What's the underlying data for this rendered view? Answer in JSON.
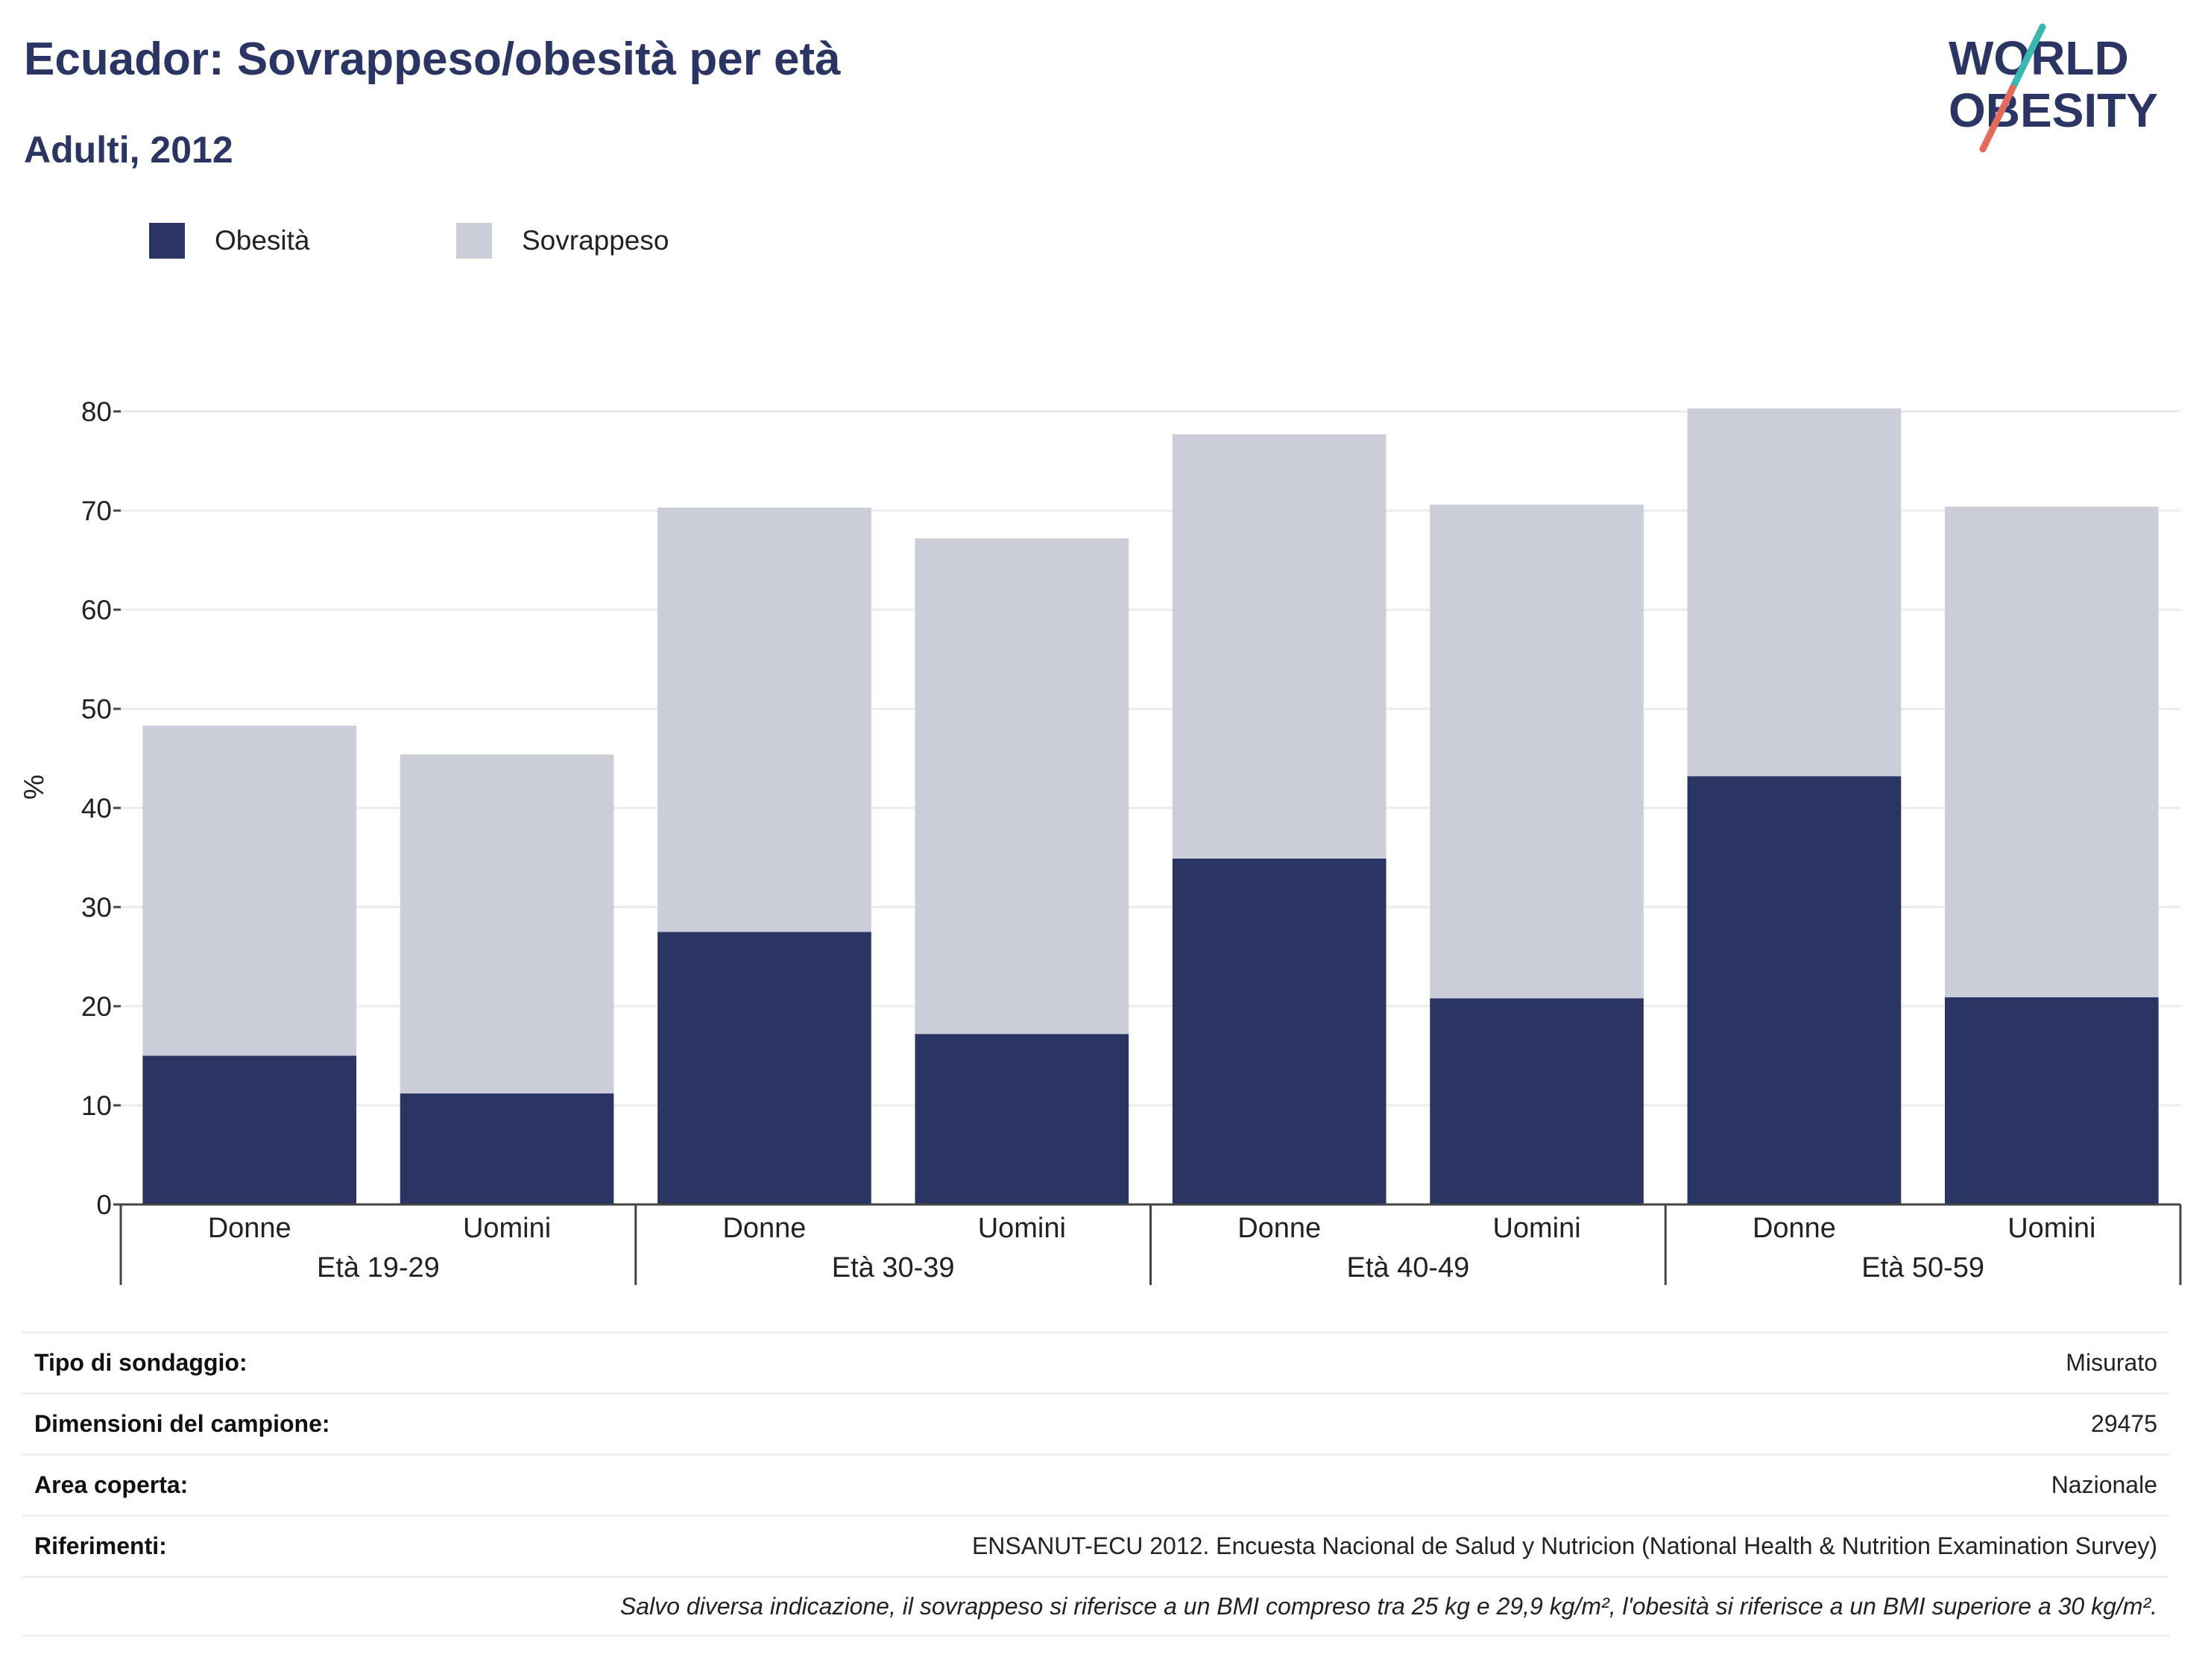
{
  "header": {
    "title": "Ecuador: Sovrappeso/obesità per età",
    "subtitle": "Adulti, 2012"
  },
  "logo": {
    "line1": "WORLD",
    "line2": "OBESITY"
  },
  "colors": {
    "obesity": "#2b3563",
    "overweight": "#cbcdd9",
    "title": "#2b3563",
    "accent_teal": "#3bb6b0",
    "accent_red": "#e36b5a"
  },
  "chart_data": {
    "type": "bar",
    "stacked": true,
    "ylabel": "%",
    "ylim": [
      0,
      80
    ],
    "yticks": [
      "0",
      "10",
      "20",
      "30",
      "40",
      "50",
      "60",
      "70",
      "80"
    ],
    "grid": true,
    "legend_position": "top-left",
    "categories": [
      "Donne",
      "Uomini",
      "Donne",
      "Uomini",
      "Donne",
      "Uomini",
      "Donne",
      "Uomini"
    ],
    "groups": [
      "Età 19-29",
      "Età 30-39",
      "Età 40-49",
      "Età 50-59"
    ],
    "series": [
      {
        "name": "Obesità",
        "values": [
          15.0,
          11.2,
          27.5,
          17.2,
          34.9,
          20.8,
          43.2,
          20.9
        ]
      },
      {
        "name": "Sovrappeso",
        "values": [
          33.3,
          34.2,
          42.8,
          50.0,
          42.8,
          49.8,
          37.1,
          49.5
        ]
      }
    ]
  },
  "meta": {
    "rows": [
      {
        "key": "Tipo di sondaggio:",
        "value": "Misurato"
      },
      {
        "key": "Dimensioni del campione:",
        "value": "29475"
      },
      {
        "key": "Area coperta:",
        "value": "Nazionale"
      },
      {
        "key": "Riferimenti:",
        "value": "ENSANUT-ECU 2012. Encuesta Nacional de Salud y Nutricion (National Health & Nutrition Examination Survey)"
      }
    ],
    "note": "Salvo diversa indicazione, il sovrappeso si riferisce a un BMI compreso tra 25 kg e 29,9 kg/m², l'obesità si riferisce a un BMI superiore a 30 kg/m²."
  }
}
